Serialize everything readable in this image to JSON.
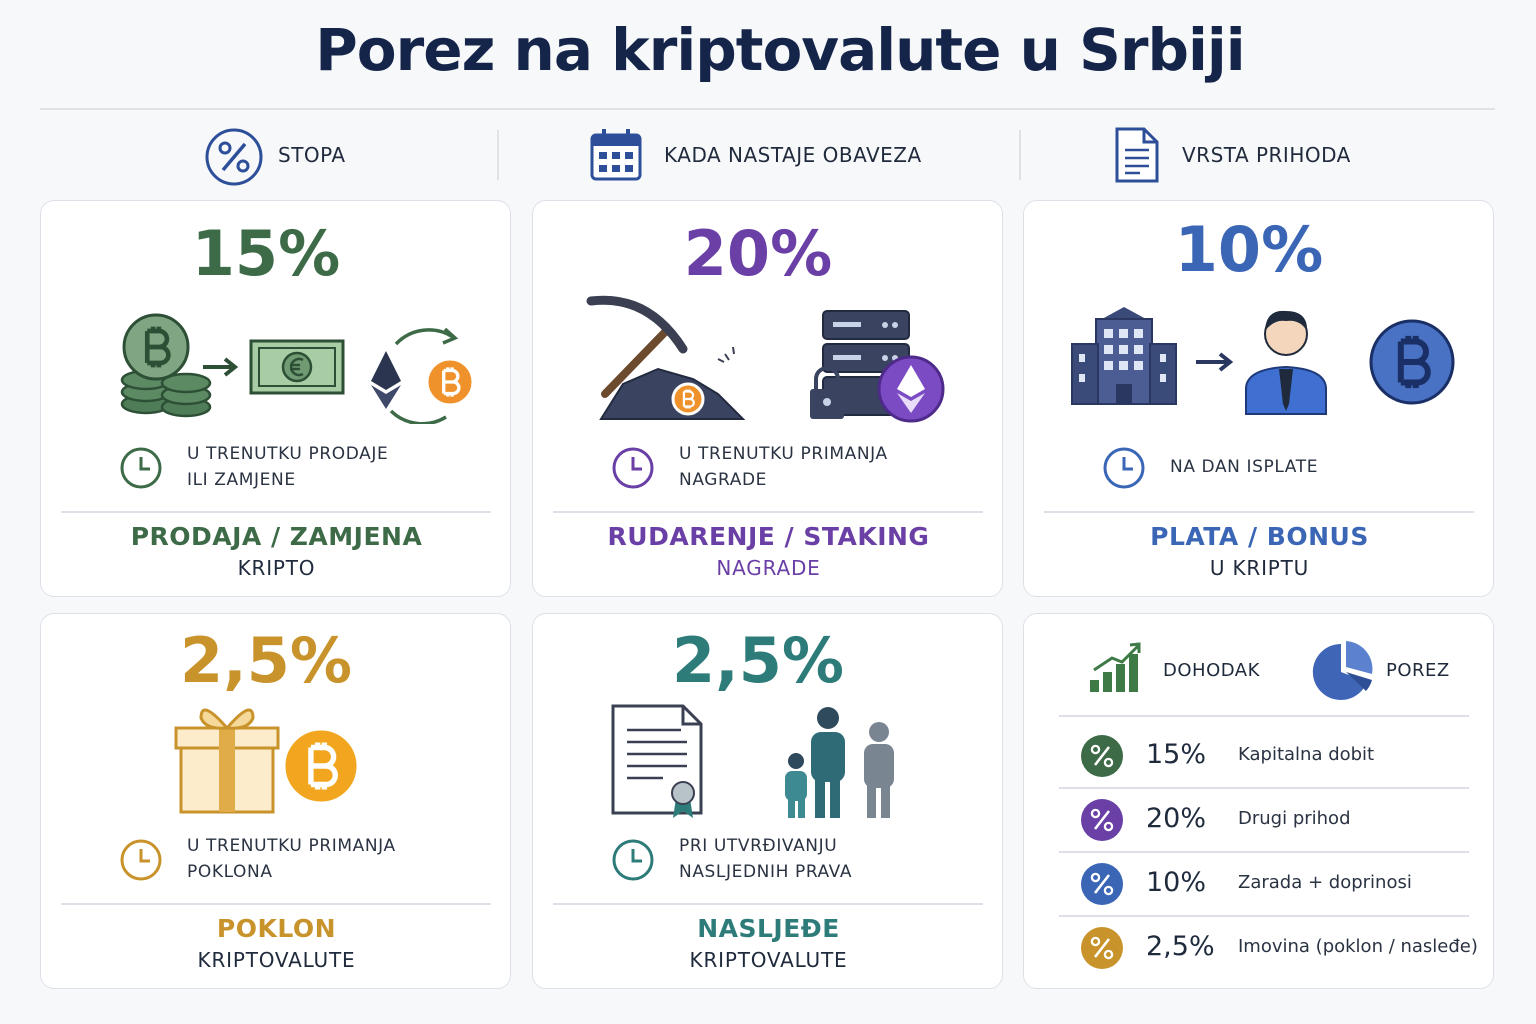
{
  "title": "Porez na kriptovalute u Srbiji",
  "header": [
    {
      "label": "STOPA"
    },
    {
      "label": "KADA NASTAJE OBAVEZA"
    },
    {
      "label": "VRSTA PRIHODA"
    }
  ],
  "cards": [
    {
      "rate": "15%",
      "timing": [
        "U TRENUTKU PRODAJE",
        "ILI ZAMJENE"
      ],
      "type": "PRODAJA / ZAMJENA",
      "subtype": "KRIPTO"
    },
    {
      "rate": "20%",
      "timing": [
        "U TRENUTKU PRIMANJA",
        "NAGRADE"
      ],
      "type": "RUDARENJE / STAKING",
      "subtype": "NAGRADE"
    },
    {
      "rate": "10%",
      "timing": [
        "NA DAN ISPLATE"
      ],
      "type": "PLATA / BONUS",
      "subtype": "U KRIPTU"
    },
    {
      "rate": "2,5%",
      "timing": [
        "U TRENUTKU PRIMANJA",
        "POKLONA"
      ],
      "type": "POKLON",
      "subtype": "KRIPTOVALUTE"
    },
    {
      "rate": "2,5%",
      "timing": [
        "PRI UTVRĐIVANJU",
        "NASLJEDNIH PRAVA"
      ],
      "type": "NASLJEĐE",
      "subtype": "KRIPTOVALUTE"
    }
  ],
  "summary": {
    "legend": [
      "DOHODAK",
      "POREZ"
    ],
    "rows": [
      {
        "rate": "15%",
        "label": "Kapitalna dobit"
      },
      {
        "rate": "20%",
        "label": "Drugi prihod"
      },
      {
        "rate": "10%",
        "label": "Zarada + doprinosi"
      },
      {
        "rate": "2,5%",
        "label": "Imovina (poklon / nasleđe)"
      }
    ]
  }
}
